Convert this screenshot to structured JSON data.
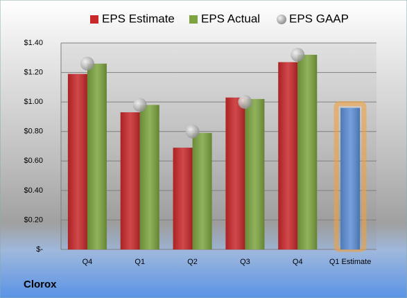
{
  "chart_data": {
    "type": "bar",
    "title": "Clorox",
    "categories": [
      "Q4",
      "Q1",
      "Q2",
      "Q3",
      "Q4",
      "Q1 Estimate"
    ],
    "series": [
      {
        "name": "EPS Estimate",
        "color": "#c8282a",
        "type": "bar",
        "values": [
          1.19,
          0.93,
          0.69,
          1.03,
          1.27,
          0.96
        ],
        "point_colors": [
          "#c8282a",
          "#c8282a",
          "#c8282a",
          "#c8282a",
          "#c8282a",
          "#5b8fd6"
        ]
      },
      {
        "name": "EPS Actual",
        "color": "#7da43f",
        "type": "bar",
        "values": [
          1.26,
          0.98,
          0.79,
          1.02,
          1.32,
          null
        ]
      },
      {
        "name": "EPS GAAP",
        "color": "#a8a8a8",
        "type": "scatter",
        "values": [
          1.26,
          0.98,
          0.8,
          1.0,
          1.32,
          null
        ]
      }
    ],
    "ylim": [
      0,
      1.4
    ],
    "yticks": [
      {
        "value": 0,
        "label": "$-"
      },
      {
        "value": 0.2,
        "label": "$0.20"
      },
      {
        "value": 0.4,
        "label": "$0.40"
      },
      {
        "value": 0.6,
        "label": "$0.60"
      },
      {
        "value": 0.8,
        "label": "$0.80"
      },
      {
        "value": 1.0,
        "label": "$1.00"
      },
      {
        "value": 1.2,
        "label": "$1.20"
      },
      {
        "value": 1.4,
        "label": "$1.40"
      }
    ],
    "grid": true,
    "legend": "top"
  }
}
